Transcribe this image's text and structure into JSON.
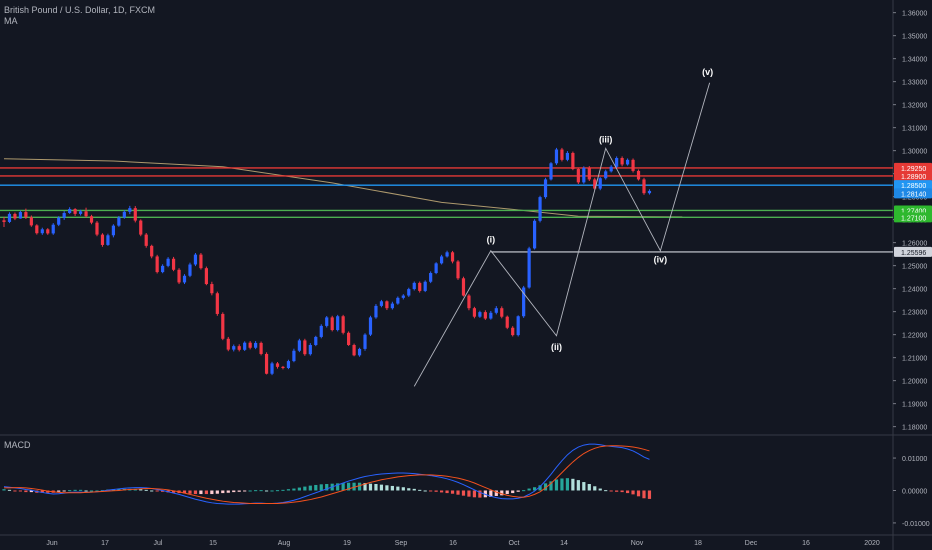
{
  "header": {
    "symbol_line": "British Pound / U.S. Dollar, 1D, FXCM",
    "indicator_line": "MA"
  },
  "macd_label": "MACD",
  "colors": {
    "background": "#131722",
    "bull": "#2962ff",
    "bear": "#f23645",
    "ma": "#c9b07a",
    "resistance": "#e53935",
    "blue_level": "#2196f3",
    "green_level": "#4caf50",
    "white_level": "#d1d4dc",
    "wave": "#b2b5be",
    "macd_line": "#2962ff",
    "signal_line": "#f4511e",
    "hist_up_strong": "#26a69a",
    "hist_up_weak": "#b2dfdb",
    "hist_down_strong": "#ef5350",
    "hist_down_weak": "#ffcdd2"
  },
  "chart_data": {
    "type": "candlestick",
    "price_axis_ticks": [
      "1.36000",
      "1.35000",
      "1.34000",
      "1.33000",
      "1.32000",
      "1.31000",
      "1.30000",
      "1.29000",
      "1.28000",
      "1.27000",
      "1.26000",
      "1.25000",
      "1.24000",
      "1.23000",
      "1.22000",
      "1.21000",
      "1.20000",
      "1.19000",
      "1.18000"
    ],
    "price_range": [
      1.1768,
      1.3655
    ],
    "time_axis_labels": [
      "Jun",
      "17",
      "Jul",
      "15",
      "Aug",
      "19",
      "Sep",
      "16",
      "Oct",
      "14",
      "Nov",
      "18",
      "Dec",
      "16",
      "2020"
    ],
    "horizontal_levels": [
      {
        "label": "1.29250",
        "price": 1.2925,
        "color": "resistance"
      },
      {
        "label": "1.28900",
        "price": 1.289,
        "color": "resistance"
      },
      {
        "label": "1.28500",
        "price": 1.285,
        "color": "blue_level"
      },
      {
        "label": "1.28140",
        "price": 1.2814,
        "color": "blue_level_tag"
      },
      {
        "label": "1.27400",
        "price": 1.274,
        "color": "green_level"
      },
      {
        "label": "1.27100",
        "price": 1.271,
        "color": "green_level"
      },
      {
        "label": "1.25596",
        "price": 1.25596,
        "color": "white_level"
      }
    ],
    "wave_labels": [
      "(i)",
      "(ii)",
      "(iii)",
      "(iv)",
      "(v)"
    ],
    "wave_points": [
      {
        "label": "",
        "bar": 75,
        "price": 1.1975
      },
      {
        "label": "(i)",
        "bar": 89,
        "price": 1.2565
      },
      {
        "label": "(ii)",
        "bar": 101,
        "price": 1.2195
      },
      {
        "label": "(iii)",
        "bar": 110,
        "price": 1.301
      },
      {
        "label": "(iv)",
        "bar": 120,
        "price": 1.2565
      },
      {
        "label": "(v)",
        "bar": 129,
        "price": 1.3295
      }
    ],
    "ma_points": [
      {
        "bar": 0,
        "price": 1.2965
      },
      {
        "bar": 20,
        "price": 1.2955
      },
      {
        "bar": 40,
        "price": 1.293
      },
      {
        "bar": 60,
        "price": 1.286
      },
      {
        "bar": 80,
        "price": 1.2775
      },
      {
        "bar": 95,
        "price": 1.274
      },
      {
        "bar": 105,
        "price": 1.2715
      },
      {
        "bar": 124,
        "price": 1.2712
      }
    ],
    "candles": [
      [
        1.2697,
        1.2712,
        1.2668,
        1.269
      ],
      [
        1.269,
        1.2732,
        1.2685,
        1.2725
      ],
      [
        1.2725,
        1.2731,
        1.2698,
        1.2705
      ],
      [
        1.2705,
        1.2739,
        1.2704,
        1.2733
      ],
      [
        1.2733,
        1.2748,
        1.2703,
        1.271
      ],
      [
        1.271,
        1.2718,
        1.2669,
        1.2675
      ],
      [
        1.2675,
        1.268,
        1.2635,
        1.2641
      ],
      [
        1.2641,
        1.2665,
        1.2634,
        1.2658
      ],
      [
        1.2658,
        1.2663,
        1.2634,
        1.264
      ],
      [
        1.264,
        1.2685,
        1.2634,
        1.2678
      ],
      [
        1.2678,
        1.2715,
        1.2672,
        1.2708
      ],
      [
        1.2708,
        1.2737,
        1.2699,
        1.2729
      ],
      [
        1.2729,
        1.2754,
        1.2725,
        1.2746
      ],
      [
        1.2746,
        1.275,
        1.2716,
        1.2725
      ],
      [
        1.2725,
        1.2743,
        1.2718,
        1.2736
      ],
      [
        1.2736,
        1.2752,
        1.2709,
        1.2715
      ],
      [
        1.2715,
        1.2721,
        1.268,
        1.2687
      ],
      [
        1.2687,
        1.2694,
        1.2628,
        1.2635
      ],
      [
        1.2635,
        1.2641,
        1.2582,
        1.259
      ],
      [
        1.259,
        1.2639,
        1.2586,
        1.2632
      ],
      [
        1.2632,
        1.268,
        1.2623,
        1.2674
      ],
      [
        1.2674,
        1.2716,
        1.2669,
        1.2709
      ],
      [
        1.2709,
        1.2742,
        1.2704,
        1.2734
      ],
      [
        1.2734,
        1.276,
        1.2724,
        1.275
      ],
      [
        1.275,
        1.2759,
        1.2688,
        1.2696
      ],
      [
        1.2696,
        1.2701,
        1.2628,
        1.2635
      ],
      [
        1.2635,
        1.2642,
        1.2578,
        1.2586
      ],
      [
        1.2586,
        1.2591,
        1.2532,
        1.254
      ],
      [
        1.254,
        1.2547,
        1.2466,
        1.2472
      ],
      [
        1.2472,
        1.2506,
        1.2467,
        1.2499
      ],
      [
        1.2499,
        1.2537,
        1.2493,
        1.253
      ],
      [
        1.253,
        1.2538,
        1.2476,
        1.2482
      ],
      [
        1.2482,
        1.2489,
        1.242,
        1.2427
      ],
      [
        1.2427,
        1.2463,
        1.242,
        1.2456
      ],
      [
        1.2456,
        1.2513,
        1.245,
        1.2505
      ],
      [
        1.2505,
        1.2555,
        1.2498,
        1.2548
      ],
      [
        1.2548,
        1.2555,
        1.2483,
        1.2489
      ],
      [
        1.2489,
        1.2496,
        1.2415,
        1.242
      ],
      [
        1.242,
        1.243,
        1.2371,
        1.238
      ],
      [
        1.238,
        1.2387,
        1.2282,
        1.229
      ],
      [
        1.229,
        1.2297,
        1.2176,
        1.2182
      ],
      [
        1.2182,
        1.219,
        1.2128,
        1.2135
      ],
      [
        1.2135,
        1.2157,
        1.2127,
        1.215
      ],
      [
        1.215,
        1.2158,
        1.2127,
        1.2134
      ],
      [
        1.2134,
        1.2171,
        1.2129,
        1.2165
      ],
      [
        1.2165,
        1.2172,
        1.2136,
        1.2143
      ],
      [
        1.2143,
        1.2172,
        1.2137,
        1.2164
      ],
      [
        1.2164,
        1.217,
        1.211,
        1.2116
      ],
      [
        1.2116,
        1.2123,
        1.2027,
        1.203
      ],
      [
        1.203,
        1.2082,
        1.2024,
        1.2075
      ],
      [
        1.2075,
        1.2081,
        1.2052,
        1.206
      ],
      [
        1.206,
        1.2064,
        1.2049,
        1.2055
      ],
      [
        1.2055,
        1.2091,
        1.205,
        1.2085
      ],
      [
        1.2085,
        1.2139,
        1.208,
        1.213
      ],
      [
        1.213,
        1.2182,
        1.2124,
        1.2175
      ],
      [
        1.2175,
        1.2182,
        1.2108,
        1.2115
      ],
      [
        1.2115,
        1.2163,
        1.2109,
        1.2155
      ],
      [
        1.2155,
        1.2195,
        1.215,
        1.219
      ],
      [
        1.219,
        1.2245,
        1.2184,
        1.2238
      ],
      [
        1.2238,
        1.2281,
        1.2231,
        1.2275
      ],
      [
        1.2275,
        1.2282,
        1.2214,
        1.222
      ],
      [
        1.222,
        1.2286,
        1.2214,
        1.228
      ],
      [
        1.228,
        1.2286,
        1.2201,
        1.2208
      ],
      [
        1.2208,
        1.2214,
        1.2151,
        1.2155
      ],
      [
        1.2155,
        1.2161,
        1.2106,
        1.211
      ],
      [
        1.211,
        1.2143,
        1.2104,
        1.2138
      ],
      [
        1.2138,
        1.2206,
        1.213,
        1.22
      ],
      [
        1.22,
        1.2282,
        1.2194,
        1.2275
      ],
      [
        1.2275,
        1.2333,
        1.2269,
        1.2325
      ],
      [
        1.2325,
        1.2351,
        1.2319,
        1.2345
      ],
      [
        1.2345,
        1.2349,
        1.2307,
        1.2315
      ],
      [
        1.2315,
        1.2343,
        1.2309,
        1.2335
      ],
      [
        1.2335,
        1.2366,
        1.233,
        1.236
      ],
      [
        1.236,
        1.2376,
        1.2353,
        1.237
      ],
      [
        1.237,
        1.2404,
        1.2364,
        1.2398
      ],
      [
        1.2398,
        1.2431,
        1.2392,
        1.2425
      ],
      [
        1.2425,
        1.2431,
        1.2383,
        1.239
      ],
      [
        1.239,
        1.2436,
        1.2385,
        1.243
      ],
      [
        1.243,
        1.2475,
        1.2424,
        1.2468
      ],
      [
        1.2468,
        1.2515,
        1.2463,
        1.251
      ],
      [
        1.251,
        1.2547,
        1.2505,
        1.254
      ],
      [
        1.254,
        1.2565,
        1.2535,
        1.2558
      ],
      [
        1.2558,
        1.2564,
        1.251,
        1.2518
      ],
      [
        1.2518,
        1.2524,
        1.2438,
        1.2445
      ],
      [
        1.2445,
        1.2452,
        1.2366,
        1.237
      ],
      [
        1.237,
        1.2376,
        1.2306,
        1.2315
      ],
      [
        1.2315,
        1.2321,
        1.2271,
        1.2278
      ],
      [
        1.2278,
        1.2304,
        1.2273,
        1.2298
      ],
      [
        1.2298,
        1.2306,
        1.2264,
        1.227
      ],
      [
        1.227,
        1.2303,
        1.2265,
        1.2295
      ],
      [
        1.2295,
        1.2324,
        1.2288,
        1.2315
      ],
      [
        1.2315,
        1.2323,
        1.2271,
        1.2278
      ],
      [
        1.2278,
        1.2283,
        1.2224,
        1.223
      ],
      [
        1.223,
        1.2237,
        1.2192,
        1.2198
      ],
      [
        1.2198,
        1.2284,
        1.2192,
        1.228
      ],
      [
        1.228,
        1.2412,
        1.2273,
        1.2405
      ],
      [
        1.2405,
        1.2582,
        1.24,
        1.2575
      ],
      [
        1.2575,
        1.2702,
        1.257,
        1.2695
      ],
      [
        1.2695,
        1.2804,
        1.2688,
        1.2798
      ],
      [
        1.2798,
        1.2882,
        1.2791,
        1.2875
      ],
      [
        1.2875,
        1.295,
        1.287,
        1.2945
      ],
      [
        1.2945,
        1.3012,
        1.2938,
        1.3005
      ],
      [
        1.3005,
        1.3012,
        1.2953,
        1.296
      ],
      [
        1.296,
        1.2998,
        1.2954,
        1.299
      ],
      [
        1.299,
        1.2996,
        1.2915,
        1.292
      ],
      [
        1.292,
        1.2926,
        1.2855,
        1.2862
      ],
      [
        1.2862,
        1.2932,
        1.2856,
        1.2925
      ],
      [
        1.2925,
        1.2933,
        1.2868,
        1.2875
      ],
      [
        1.2875,
        1.2882,
        1.2829,
        1.2835
      ],
      [
        1.2835,
        1.2885,
        1.2828,
        1.288
      ],
      [
        1.288,
        1.2917,
        1.2874,
        1.291
      ],
      [
        1.291,
        1.2937,
        1.2905,
        1.293
      ],
      [
        1.293,
        1.2975,
        1.2924,
        1.2968
      ],
      [
        1.2968,
        1.2975,
        1.2932,
        1.294
      ],
      [
        1.294,
        1.2966,
        1.2935,
        1.296
      ],
      [
        1.296,
        1.2966,
        1.2905,
        1.2912
      ],
      [
        1.2912,
        1.2918,
        1.287,
        1.2875
      ],
      [
        1.2875,
        1.2882,
        1.2808,
        1.2815
      ],
      [
        1.2815,
        1.2832,
        1.2809,
        1.2825
      ]
    ],
    "macd_axis_ticks": [
      "0.01000",
      "0.00000",
      "-0.01000"
    ],
    "macd_range": [
      -0.0128,
      0.0168
    ],
    "macd_line": [
      0.0012,
      0.001,
      0.0008,
      0.0006,
      0.0003,
      0.0001,
      -0.0003,
      -0.0006,
      -0.0009,
      -0.0011,
      -0.001,
      -0.0008,
      -0.0006,
      -0.0005,
      -0.0005,
      -0.0006,
      -0.0005,
      -0.0004,
      -0.0002,
      0.0001,
      0.0003,
      0.0005,
      0.0007,
      0.0008,
      0.0009,
      0.0009,
      0.0008,
      0.0006,
      0.0003,
      0.0,
      -0.0004,
      -0.0008,
      -0.0012,
      -0.0017,
      -0.0022,
      -0.0027,
      -0.0031,
      -0.0035,
      -0.0038,
      -0.004,
      -0.0041,
      -0.0042,
      -0.0042,
      -0.0042,
      -0.0041,
      -0.004,
      -0.0039,
      -0.0039,
      -0.004,
      -0.004,
      -0.0039,
      -0.0037,
      -0.0034,
      -0.003,
      -0.0025,
      -0.0019,
      -0.0013,
      -0.0007,
      -0.0001,
      0.0005,
      0.0011,
      0.0017,
      0.0023,
      0.0029,
      0.0034,
      0.0039,
      0.0043,
      0.0046,
      0.0049,
      0.0051,
      0.0052,
      0.0053,
      0.0054,
      0.0054,
      0.0053,
      0.0052,
      0.005,
      0.0048,
      0.0046,
      0.0043,
      0.004,
      0.0036,
      0.0031,
      0.0025,
      0.0018,
      0.001,
      0.0002,
      -0.0006,
      -0.0012,
      -0.0018,
      -0.0022,
      -0.0025,
      -0.0026,
      -0.0026,
      -0.0024,
      -0.002,
      -0.0012,
      -0.0002,
      0.0012,
      0.003,
      0.005,
      0.0072,
      0.0092,
      0.011,
      0.0124,
      0.0134,
      0.014,
      0.0143,
      0.0143,
      0.0141,
      0.0138,
      0.0136,
      0.0134,
      0.0132,
      0.0128,
      0.0122,
      0.0113,
      0.0103,
      0.0096
    ],
    "signal_line": [
      0.0008,
      0.0008,
      0.0009,
      0.0009,
      0.0008,
      0.0006,
      0.0004,
      0.0001,
      -0.0002,
      -0.0004,
      -0.0006,
      -0.0007,
      -0.0007,
      -0.0007,
      -0.0007,
      -0.0006,
      -0.0005,
      -0.0004,
      -0.0003,
      -0.0002,
      -0.0001,
      0.0,
      0.0002,
      0.0003,
      0.0004,
      0.0005,
      0.0006,
      0.0006,
      0.0005,
      0.0004,
      0.0002,
      -0.0001,
      -0.0004,
      -0.0008,
      -0.0012,
      -0.0016,
      -0.002,
      -0.0024,
      -0.0027,
      -0.003,
      -0.0033,
      -0.0035,
      -0.0037,
      -0.0038,
      -0.0039,
      -0.004,
      -0.004,
      -0.004,
      -0.004,
      -0.004,
      -0.004,
      -0.0039,
      -0.0038,
      -0.0036,
      -0.0034,
      -0.0031,
      -0.0028,
      -0.0024,
      -0.002,
      -0.0015,
      -0.001,
      -0.0005,
      0.0,
      0.0005,
      0.001,
      0.0015,
      0.002,
      0.0025,
      0.0029,
      0.0033,
      0.0036,
      0.0039,
      0.0042,
      0.0044,
      0.0046,
      0.0047,
      0.0048,
      0.0048,
      0.0048,
      0.0047,
      0.0046,
      0.0044,
      0.0041,
      0.0038,
      0.0034,
      0.0029,
      0.0023,
      0.0016,
      0.0009,
      0.0002,
      -0.0005,
      -0.001,
      -0.0015,
      -0.0018,
      -0.002,
      -0.0021,
      -0.0018,
      -0.0012,
      -0.0004,
      0.0008,
      0.0022,
      0.0038,
      0.0055,
      0.0072,
      0.0088,
      0.0102,
      0.0114,
      0.0123,
      0.013,
      0.0135,
      0.0137,
      0.0138,
      0.0138,
      0.0137,
      0.0136,
      0.0134,
      0.0131,
      0.0127,
      0.0122
    ]
  }
}
